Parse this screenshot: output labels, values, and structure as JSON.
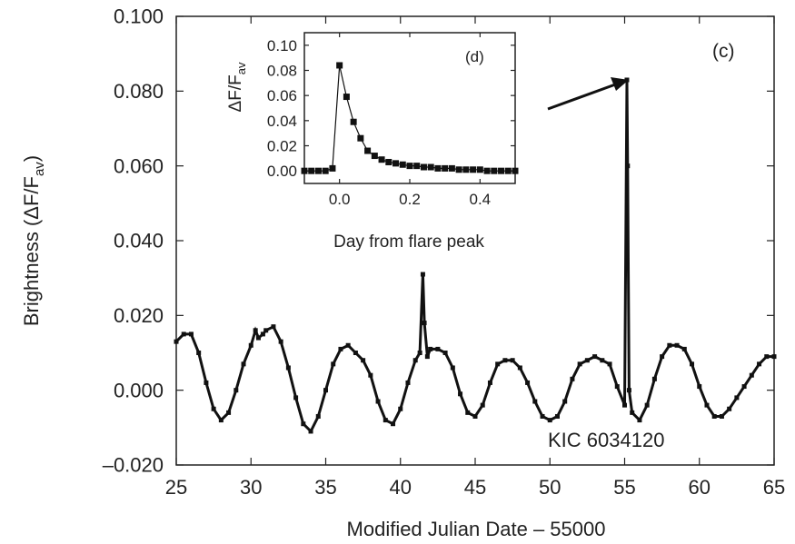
{
  "chart_data": [
    {
      "type": "line",
      "panel_label": "(c)",
      "xlabel": "Modified Julian Date – 55000",
      "ylabel": "Brightness (ΔF/F",
      "ylabel_sub": "av",
      "ylabel_tail": ")",
      "xlim": [
        25,
        65
      ],
      "ylim": [
        -0.02,
        0.1
      ],
      "x_ticks": [
        25,
        30,
        35,
        40,
        45,
        50,
        55,
        60,
        65
      ],
      "x_tick_labels": [
        "25",
        "30",
        "35",
        "40",
        "45",
        "50",
        "55",
        "60",
        "65"
      ],
      "y_ticks": [
        -0.02,
        0.0,
        0.02,
        0.04,
        0.06,
        0.08,
        0.1
      ],
      "y_tick_labels": [
        "–0.020",
        "0.000",
        "0.020",
        "0.040",
        "0.060",
        "0.080",
        "0.100"
      ],
      "annotation": "KIC 6034120",
      "series": [
        {
          "x": [
            25.0,
            25.5,
            26.0,
            26.5,
            27.0,
            27.5,
            28.0,
            28.5,
            29.0,
            29.5,
            30.0,
            30.3,
            30.5,
            30.8,
            31.0,
            31.5,
            32.0,
            32.5,
            33.0,
            33.5,
            34.0,
            34.5,
            35.0,
            35.5,
            36.0,
            36.5,
            37.0,
            37.5,
            38.0,
            38.5,
            39.0,
            39.5,
            40.0,
            40.5,
            41.0,
            41.3,
            41.5,
            41.6,
            41.8,
            42.0,
            42.5,
            43.0,
            43.5,
            44.0,
            44.5,
            45.0,
            45.5,
            46.0,
            46.5,
            47.0,
            47.5,
            48.0,
            48.5,
            49.0,
            49.5,
            50.0,
            50.5,
            51.0,
            51.5,
            52.0,
            52.5,
            53.0,
            53.5,
            54.0,
            54.5,
            55.0,
            55.15,
            55.2,
            55.3,
            55.5,
            56.0,
            56.5,
            57.0,
            57.5,
            58.0,
            58.5,
            59.0,
            59.5,
            60.0,
            60.5,
            61.0,
            61.5,
            62.0,
            62.5,
            63.0,
            63.5,
            64.0,
            64.5,
            65.0
          ],
          "y": [
            0.013,
            0.015,
            0.015,
            0.01,
            0.002,
            -0.005,
            -0.008,
            -0.006,
            0.0,
            0.007,
            0.012,
            0.016,
            0.014,
            0.015,
            0.016,
            0.017,
            0.013,
            0.006,
            -0.002,
            -0.009,
            -0.011,
            -0.007,
            0.0,
            0.007,
            0.011,
            0.012,
            0.01,
            0.008,
            0.004,
            -0.003,
            -0.008,
            -0.009,
            -0.005,
            0.002,
            0.008,
            0.01,
            0.031,
            0.018,
            0.009,
            0.011,
            0.011,
            0.01,
            0.006,
            -0.001,
            -0.006,
            -0.007,
            -0.004,
            0.002,
            0.007,
            0.008,
            0.008,
            0.006,
            0.002,
            -0.003,
            -0.007,
            -0.008,
            -0.007,
            -0.003,
            0.003,
            0.007,
            0.008,
            0.009,
            0.008,
            0.007,
            0.001,
            -0.004,
            0.083,
            0.06,
            0.0,
            -0.006,
            -0.008,
            -0.004,
            0.003,
            0.009,
            0.012,
            0.012,
            0.011,
            0.007,
            0.001,
            -0.004,
            -0.007,
            -0.007,
            -0.005,
            -0.002,
            0.001,
            0.004,
            0.007,
            0.009,
            0.009
          ]
        }
      ]
    },
    {
      "type": "line",
      "panel_label": "(d)",
      "xlabel": "Day from flare peak",
      "ylabel": "ΔF/F",
      "ylabel_sub": "av",
      "xlim": [
        -0.1,
        0.5
      ],
      "ylim": [
        -0.01,
        0.11
      ],
      "x_ticks": [
        0.0,
        0.2,
        0.4
      ],
      "x_tick_labels": [
        "0.0",
        "0.2",
        "0.4"
      ],
      "y_ticks": [
        0.0,
        0.02,
        0.04,
        0.06,
        0.08,
        0.1
      ],
      "y_tick_labels": [
        "0.00",
        "0.02",
        "0.04",
        "0.06",
        "0.08",
        "0.10"
      ],
      "series": [
        {
          "x": [
            -0.1,
            -0.08,
            -0.06,
            -0.04,
            -0.02,
            0.0,
            0.02,
            0.04,
            0.06,
            0.08,
            0.1,
            0.12,
            0.14,
            0.16,
            0.18,
            0.2,
            0.22,
            0.24,
            0.26,
            0.28,
            0.3,
            0.32,
            0.34,
            0.36,
            0.38,
            0.4,
            0.42,
            0.44,
            0.46,
            0.48,
            0.5
          ],
          "y": [
            0.0,
            0.0,
            0.0,
            0.0,
            0.002,
            0.084,
            0.059,
            0.039,
            0.026,
            0.016,
            0.012,
            0.009,
            0.007,
            0.006,
            0.005,
            0.004,
            0.004,
            0.003,
            0.003,
            0.002,
            0.002,
            0.002,
            0.001,
            0.001,
            0.001,
            0.001,
            0.0,
            0.0,
            0.0,
            0.0,
            0.0
          ]
        }
      ]
    }
  ]
}
